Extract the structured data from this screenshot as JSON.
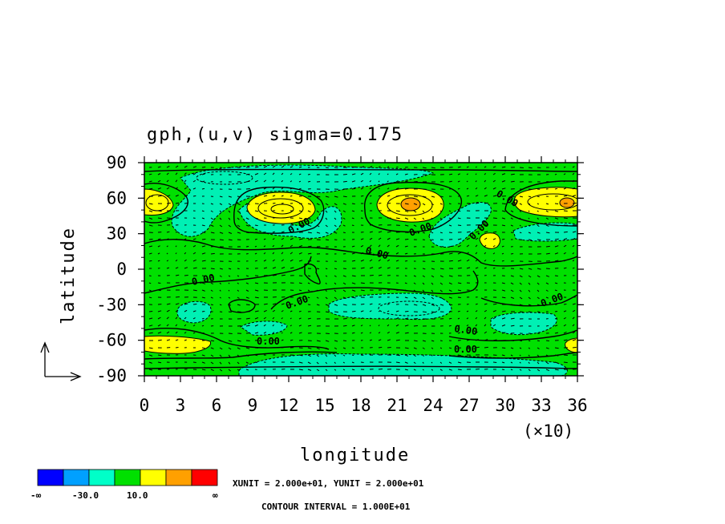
{
  "chart_data": {
    "type": "heatmap",
    "title": "gph,(u,v) sigma=0.175",
    "xlabel": "longitude",
    "ylabel": "latitude",
    "x_multiplier": "(×10)",
    "xlim": [
      0,
      36
    ],
    "ylim": [
      -90,
      90
    ],
    "xticks": [
      0,
      3,
      6,
      9,
      12,
      15,
      18,
      21,
      24,
      27,
      30,
      33,
      36
    ],
    "yticks": [
      90,
      60,
      30,
      0,
      -30,
      -60,
      -90
    ],
    "grid": false,
    "contour_labels": [
      "0.00",
      "0.00",
      "0.00",
      "0.00",
      "0.00",
      "0.00",
      "0.00",
      "0.00",
      "0.00",
      "0.00",
      "0.00"
    ],
    "colorbar": {
      "colors": [
        "#0000ff",
        "#00a0ff",
        "#00ffc8",
        "#00e000",
        "#ffff00",
        "#ffa000",
        "#ff0000"
      ],
      "labels": [
        "-∞",
        "-30.0",
        "10.0",
        "∞"
      ]
    },
    "footer": {
      "units": "XUNIT = 2.000e+01, YUNIT = 2.000e+01",
      "contour_interval": "CONTOUR INTERVAL = 1.000E+01"
    },
    "background_level_color": "#00e000",
    "negative_region_color": "#00f0b4",
    "positive_region_color": "#ffff00",
    "peak_color": "#ffa000"
  }
}
